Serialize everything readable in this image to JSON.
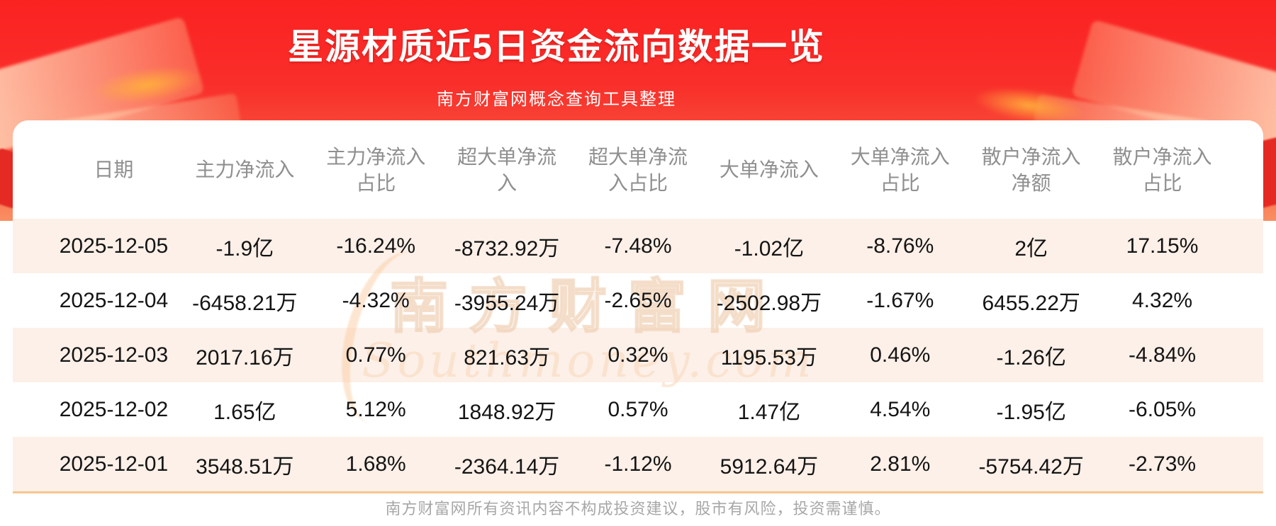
{
  "banner": {
    "title": "星源材质近5日资金流向数据一览",
    "subtitle": "南方财富网概念查询工具整理"
  },
  "chart_data": {
    "type": "table",
    "title": "星源材质近5日资金流向数据一览",
    "columns": [
      "日期",
      "主力净流入",
      "主力净流入占比",
      "超大单净流入",
      "超大单净流入占比",
      "大单净流入",
      "大单净流入占比",
      "散户净流入净额",
      "散户净流入占比"
    ],
    "columns_display": [
      "日期",
      "主力净流入",
      "主力净流入\n占比",
      "超大单净流\n入",
      "超大单净流\n入占比",
      "大单净流入",
      "大单净流入\n占比",
      "散户净流入\n净额",
      "散户净流入\n占比"
    ],
    "rows": [
      [
        "2025-12-05",
        "-1.9亿",
        "-16.24%",
        "-8732.92万",
        "-7.48%",
        "-1.02亿",
        "-8.76%",
        "2亿",
        "17.15%"
      ],
      [
        "2025-12-04",
        "-6458.21万",
        "-4.32%",
        "-3955.24万",
        "-2.65%",
        "-2502.98万",
        "-1.67%",
        "6455.22万",
        "4.32%"
      ],
      [
        "2025-12-03",
        "2017.16万",
        "0.77%",
        "821.63万",
        "0.32%",
        "1195.53万",
        "0.46%",
        "-1.26亿",
        "-4.84%"
      ],
      [
        "2025-12-02",
        "1.65亿",
        "5.12%",
        "1848.92万",
        "0.57%",
        "1.47亿",
        "4.54%",
        "-1.95亿",
        "-6.05%"
      ],
      [
        "2025-12-01",
        "3548.51万",
        "1.68%",
        "-2364.14万",
        "-1.12%",
        "5912.64万",
        "2.81%",
        "-5754.42万",
        "-2.73%"
      ]
    ]
  },
  "watermark": {
    "cn": "南方财富网",
    "en": "Southmoney.com"
  },
  "footer": {
    "disclaimer": "南方财富网所有资讯内容不构成投资建议，股市有风险，投资需谨慎。"
  },
  "colors": {
    "banner_top": "#fb2222",
    "banner_bottom": "#f98f62",
    "row_alt_background": "#fcf0e8",
    "bottom_divider": "#f7c68f",
    "header_text": "#8f8f8f",
    "cell_text": "#141414",
    "footer_text": "#a7a7a7",
    "title_text": "#ffffff"
  }
}
